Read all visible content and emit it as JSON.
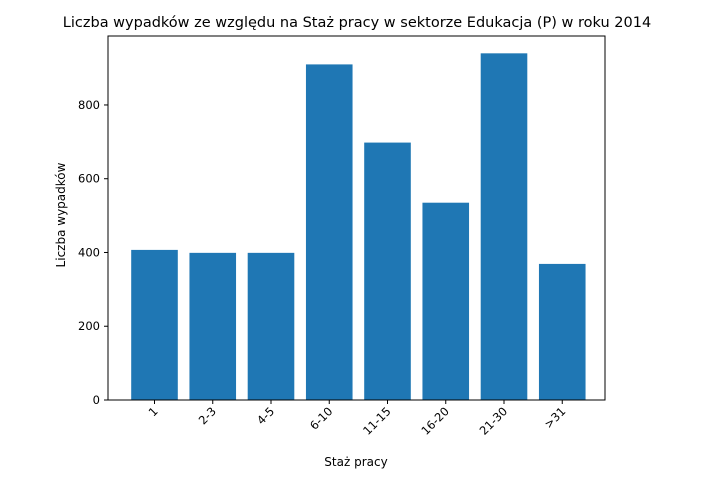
{
  "chart_data": {
    "type": "bar",
    "title": "Liczba wypadków ze względu na Staż pracy w sektorze Edukacja  (P)   w roku 2014",
    "xlabel": "Staż pracy",
    "ylabel": "Liczba wypadków",
    "categories": [
      "1",
      "2-3",
      "4-5",
      "6-10",
      "11-15",
      "16-20",
      "21-30",
      ">31"
    ],
    "values": [
      407,
      399,
      399,
      910,
      698,
      535,
      940,
      369
    ],
    "ylim": [
      0,
      987
    ],
    "yticks": [
      0,
      200,
      400,
      600,
      800
    ],
    "grid": false,
    "color": "#1f77b4"
  }
}
